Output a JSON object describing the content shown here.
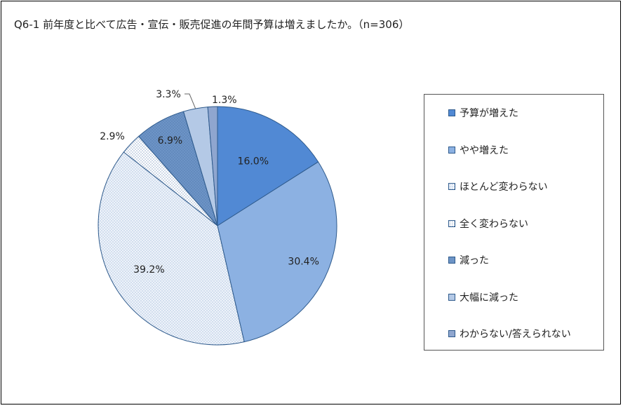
{
  "chart_data": {
    "type": "pie",
    "title": "Q6-1 前年度と比べて広告・宣伝・販売促進の年間予算は増えましたか。（n=306）",
    "categories": [
      "予算が増えた",
      "やや増えた",
      "ほとんど変わらない",
      "全く変わらない",
      "減った",
      "大幅に減った",
      "わからない/答えられない"
    ],
    "values": [
      16.0,
      30.4,
      39.2,
      2.9,
      6.9,
      3.3,
      1.3
    ],
    "data_labels": [
      "16.0%",
      "30.4%",
      "39.2%",
      "2.9%",
      "6.9%",
      "3.3%",
      "1.3%"
    ],
    "colors": [
      "#5189d4",
      "#8cb1e2",
      "#eef3fa",
      "#ffffff",
      "#6d94c6",
      "#b4c9e6",
      "#8fa6cf"
    ],
    "legend_position": "right"
  }
}
